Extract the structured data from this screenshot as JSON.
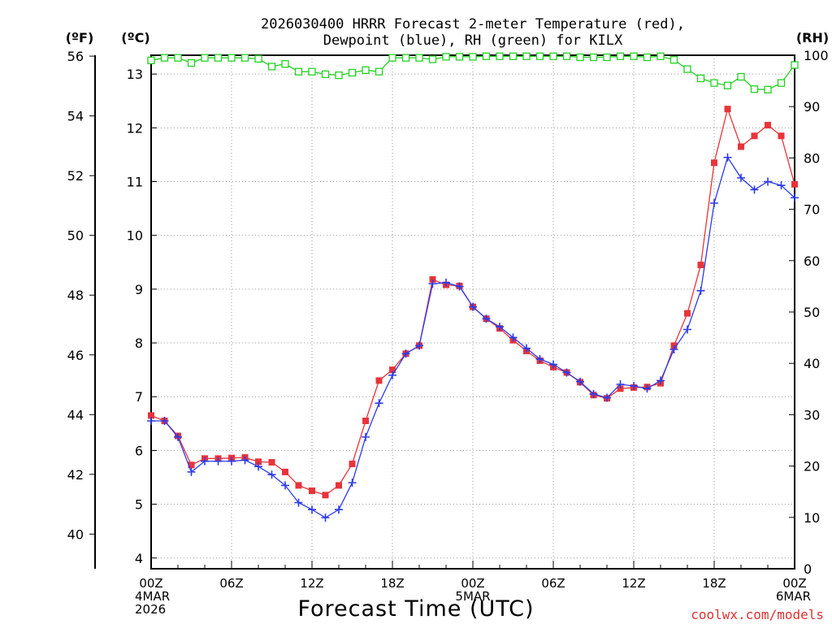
{
  "chart_data": {
    "type": "line",
    "title_line1": "2026030400 HRRR Forecast 2-meter Temperature (red),",
    "title_line2": "Dewpoint (blue), RH (green) for KILX",
    "xlabel": "Forecast Time (UTC)",
    "credit": "coolwx.com/models",
    "units": {
      "fahrenheit": "(ºF)",
      "celsius": "(ºC)",
      "rh": "(RH)"
    },
    "x_range_hours": [
      0,
      48
    ],
    "y_celsius_range": [
      3.8,
      13.35
    ],
    "rh_range": [
      0,
      100
    ],
    "x_ticks": [
      {
        "hour": 0,
        "lines": [
          "00Z",
          "4MAR",
          "2026"
        ]
      },
      {
        "hour": 6,
        "lines": [
          "06Z"
        ]
      },
      {
        "hour": 12,
        "lines": [
          "12Z"
        ]
      },
      {
        "hour": 18,
        "lines": [
          "18Z"
        ]
      },
      {
        "hour": 24,
        "lines": [
          "00Z",
          "5MAR"
        ]
      },
      {
        "hour": 30,
        "lines": [
          "06Z"
        ]
      },
      {
        "hour": 36,
        "lines": [
          "12Z"
        ]
      },
      {
        "hour": 42,
        "lines": [
          "18Z"
        ]
      },
      {
        "hour": 48,
        "lines": [
          "00Z",
          "6MAR"
        ]
      }
    ],
    "celsius_ticks": [
      "4",
      "5",
      "6",
      "7",
      "8",
      "9",
      "10",
      "11",
      "12",
      "13"
    ],
    "fahrenheit_ticks": [
      "40",
      "42",
      "44",
      "46",
      "48",
      "50",
      "52",
      "54",
      "56"
    ],
    "rh_ticks": [
      "0",
      "10",
      "20",
      "30",
      "40",
      "50",
      "60",
      "70",
      "80",
      "90",
      "100"
    ],
    "colors": {
      "temperature": "#e8343a",
      "dewpoint": "#2c3be8",
      "rh": "#22d222",
      "credit": "#e03030"
    },
    "series": [
      {
        "name": "Temperature",
        "unit": "°C",
        "marker": "square",
        "values": [
          6.65,
          6.55,
          6.27,
          5.73,
          5.85,
          5.85,
          5.86,
          5.87,
          5.79,
          5.78,
          5.6,
          5.35,
          5.25,
          5.17,
          5.35,
          5.75,
          6.55,
          7.3,
          7.5,
          7.8,
          7.95,
          9.18,
          9.08,
          9.06,
          8.67,
          8.45,
          8.27,
          8.05,
          7.85,
          7.67,
          7.55,
          7.45,
          7.27,
          7.03,
          6.97,
          7.15,
          7.17,
          7.18,
          7.25,
          7.95,
          8.55,
          9.45,
          11.35,
          12.35,
          11.65,
          11.85,
          12.05,
          11.85,
          10.95
        ]
      },
      {
        "name": "Dewpoint",
        "unit": "°C",
        "marker": "plus",
        "values": [
          6.55,
          6.55,
          6.25,
          5.6,
          5.8,
          5.8,
          5.8,
          5.82,
          5.7,
          5.55,
          5.35,
          5.03,
          4.9,
          4.75,
          4.9,
          5.4,
          6.25,
          6.88,
          7.4,
          7.8,
          7.95,
          9.1,
          9.12,
          9.05,
          8.67,
          8.45,
          8.3,
          8.1,
          7.9,
          7.7,
          7.6,
          7.45,
          7.28,
          7.05,
          6.98,
          7.23,
          7.2,
          7.15,
          7.3,
          7.88,
          8.25,
          8.97,
          10.6,
          11.45,
          11.07,
          10.85,
          11.0,
          10.93,
          10.7
        ]
      },
      {
        "name": "RH",
        "unit": "%",
        "marker": "open-square",
        "values": [
          99,
          99.5,
          99.5,
          98.5,
          99.5,
          99.5,
          99.5,
          99.5,
          99.3,
          97.8,
          98.3,
          96.8,
          96.8,
          96.3,
          96.1,
          96.6,
          97.1,
          96.8,
          99.5,
          99.5,
          99.5,
          99.2,
          99.7,
          99.7,
          99.7,
          99.8,
          99.8,
          99.8,
          99.8,
          99.8,
          99.8,
          99.8,
          99.6,
          99.6,
          99.6,
          99.8,
          99.8,
          99.6,
          99.8,
          99.1,
          97.3,
          95.5,
          94.6,
          94.1,
          95.8,
          93.4,
          93.3,
          94.6,
          98.1
        ]
      }
    ]
  }
}
